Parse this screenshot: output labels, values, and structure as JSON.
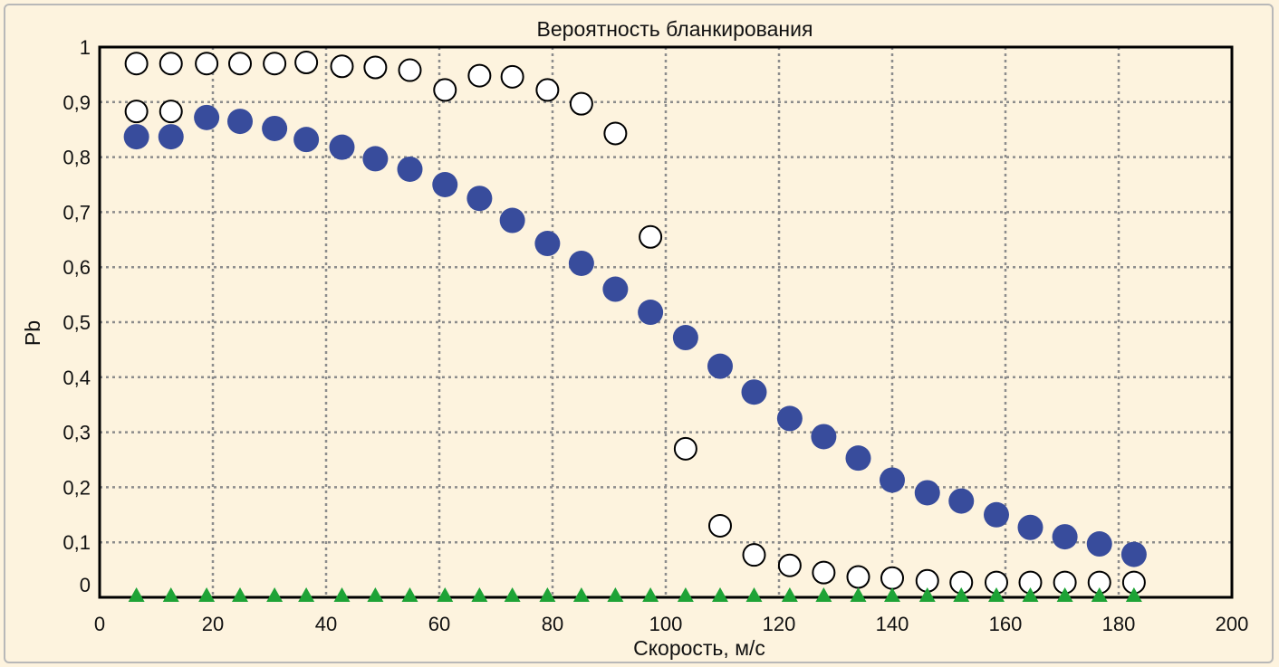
{
  "chart_data": {
    "type": "scatter",
    "title": "Вероятность бланкирования",
    "xlabel": "Скорость, м/с",
    "ylabel": "Pb",
    "xlim": [
      0,
      200
    ],
    "ylim": [
      0,
      1
    ],
    "x_ticks": [
      0,
      20,
      40,
      60,
      80,
      100,
      120,
      140,
      160,
      180,
      200
    ],
    "y_ticks": [
      0,
      0.1,
      0.2,
      0.3,
      0.4,
      0.5,
      0.6,
      0.7,
      0.8,
      0.9,
      1
    ],
    "y_tick_labels": [
      "0",
      "0,1",
      "0,2",
      "0,3",
      "0,4",
      "0,5",
      "0,6",
      "0,7",
      "0,8",
      "0,9",
      "1"
    ],
    "grid": true,
    "series": [
      {
        "marker": "open-circle",
        "color": "#000000",
        "points": [
          [
            6.5,
            0.97
          ],
          [
            12.6,
            0.97
          ],
          [
            18.9,
            0.97
          ],
          [
            24.8,
            0.97
          ],
          [
            30.9,
            0.97
          ],
          [
            36.5,
            0.972
          ],
          [
            42.8,
            0.965
          ],
          [
            48.7,
            0.963
          ],
          [
            54.8,
            0.958
          ],
          [
            61.0,
            0.922
          ],
          [
            67.1,
            0.948
          ],
          [
            72.9,
            0.946
          ],
          [
            79.1,
            0.922
          ],
          [
            85.1,
            0.897
          ],
          [
            91.1,
            0.843
          ],
          [
            97.3,
            0.655
          ],
          [
            103.5,
            0.27
          ],
          [
            109.6,
            0.13
          ],
          [
            115.6,
            0.077
          ],
          [
            121.9,
            0.058
          ],
          [
            127.9,
            0.045
          ],
          [
            134.0,
            0.037
          ],
          [
            140.0,
            0.035
          ],
          [
            146.2,
            0.03
          ],
          [
            152.2,
            0.027
          ],
          [
            158.4,
            0.027
          ],
          [
            164.4,
            0.027
          ],
          [
            170.5,
            0.027
          ],
          [
            176.6,
            0.027
          ],
          [
            182.7,
            0.027
          ],
          [
            6.5,
            0.883
          ],
          [
            12.6,
            0.883
          ]
        ]
      },
      {
        "marker": "filled-circle",
        "color": "#384c9c",
        "points": [
          [
            6.5,
            0.837
          ],
          [
            12.6,
            0.837
          ],
          [
            18.9,
            0.872
          ],
          [
            24.8,
            0.865
          ],
          [
            30.9,
            0.852
          ],
          [
            36.5,
            0.832
          ],
          [
            42.8,
            0.818
          ],
          [
            48.7,
            0.797
          ],
          [
            54.8,
            0.778
          ],
          [
            61.0,
            0.75
          ],
          [
            67.1,
            0.725
          ],
          [
            72.9,
            0.685
          ],
          [
            79.1,
            0.643
          ],
          [
            85.1,
            0.607
          ],
          [
            91.1,
            0.56
          ],
          [
            97.3,
            0.518
          ],
          [
            103.5,
            0.472
          ],
          [
            109.6,
            0.42
          ],
          [
            115.6,
            0.373
          ],
          [
            121.9,
            0.325
          ],
          [
            127.9,
            0.292
          ],
          [
            134.0,
            0.253
          ],
          [
            140.0,
            0.213
          ],
          [
            146.2,
            0.19
          ],
          [
            152.2,
            0.175
          ],
          [
            158.4,
            0.15
          ],
          [
            164.4,
            0.127
          ],
          [
            170.5,
            0.11
          ],
          [
            176.6,
            0.097
          ],
          [
            182.7,
            0.078
          ]
        ]
      },
      {
        "marker": "filled-triangle",
        "color": "#1ea336",
        "points": [
          [
            6.5,
            0
          ],
          [
            12.6,
            0
          ],
          [
            18.9,
            0
          ],
          [
            24.8,
            0
          ],
          [
            30.9,
            0
          ],
          [
            36.5,
            0
          ],
          [
            42.8,
            0
          ],
          [
            48.7,
            0
          ],
          [
            54.8,
            0
          ],
          [
            61.0,
            0
          ],
          [
            67.1,
            0
          ],
          [
            72.9,
            0
          ],
          [
            79.1,
            0
          ],
          [
            85.1,
            0
          ],
          [
            91.1,
            0
          ],
          [
            97.3,
            0
          ],
          [
            103.5,
            0
          ],
          [
            109.6,
            0
          ],
          [
            115.6,
            0
          ],
          [
            121.9,
            0
          ],
          [
            127.9,
            0
          ],
          [
            134.0,
            0
          ],
          [
            140.0,
            0
          ],
          [
            146.2,
            0
          ],
          [
            152.2,
            0
          ],
          [
            158.4,
            0
          ],
          [
            164.4,
            0
          ],
          [
            170.5,
            0
          ],
          [
            176.6,
            0
          ],
          [
            182.7,
            0
          ]
        ]
      }
    ]
  }
}
